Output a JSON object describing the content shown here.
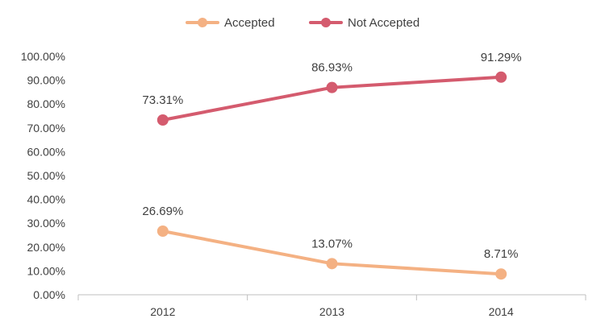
{
  "chart_data": {
    "type": "line",
    "title": "",
    "xlabel": "",
    "ylabel": "",
    "categories": [
      "2012",
      "2013",
      "2014"
    ],
    "series": [
      {
        "name": "Accepted",
        "values": [
          26.69,
          13.07,
          8.71
        ],
        "labels": [
          "26.69%",
          "13.07%",
          "8.71%"
        ],
        "color": "#F4B183"
      },
      {
        "name": "Not Accepted",
        "values": [
          73.31,
          86.93,
          91.29
        ],
        "labels": [
          "73.31%",
          "86.93%",
          "91.29%"
        ],
        "color": "#D45B6E"
      }
    ],
    "ylim": [
      0,
      100
    ],
    "y_ticks": [
      "0.00%",
      "10.00%",
      "20.00%",
      "30.00%",
      "40.00%",
      "50.00%",
      "60.00%",
      "70.00%",
      "80.00%",
      "90.00%",
      "100.00%"
    ],
    "grid": false,
    "legend_position": "top-center",
    "axis_color": "#BFBFBF"
  }
}
